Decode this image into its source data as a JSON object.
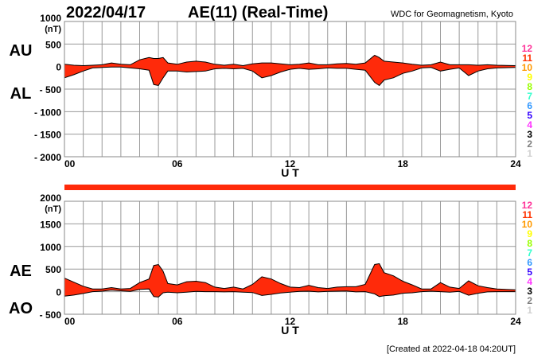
{
  "header": {
    "date": "2022/04/17",
    "title": "AE(11) (Real-Time)",
    "source": "WDC for Geomagnetism, Kyoto"
  },
  "footer": "[Created at 2022-04-18 04:20UT]",
  "station_legend": {
    "labels": [
      "12",
      "11",
      "10",
      "9",
      "8",
      "7",
      "6",
      "5",
      "4",
      "3",
      "2",
      "1"
    ],
    "colors": [
      "#ff3399",
      "#ff3300",
      "#ff9900",
      "#ffff00",
      "#99ff00",
      "#33ffcc",
      "#3399ff",
      "#3300ff",
      "#ff33ff",
      "#000000",
      "#808080",
      "#d0d0d0"
    ]
  },
  "colors": {
    "fill": "#ff2a0a",
    "outline": "#000000",
    "grid": "#999999"
  },
  "chart_data": [
    {
      "type": "area",
      "name": "AU/AL",
      "label_upper": "AU",
      "label_lower": "AL",
      "unit": "(nT)",
      "xlabel": "U T",
      "xlim": [
        0,
        24
      ],
      "xticks": [
        0,
        6,
        12,
        18,
        24
      ],
      "xtick_labels": [
        "00",
        "06",
        "12",
        "18",
        "24"
      ],
      "ylim": [
        -2000,
        1000
      ],
      "yticks": [
        1000,
        500,
        0,
        -500,
        -1000,
        -1500,
        -2000
      ],
      "ytick_labels": [
        "1000",
        "500",
        "0",
        "- 500",
        "- 1000",
        "- 1500",
        "- 2000"
      ],
      "grid": true,
      "x": [
        0,
        0.5,
        1,
        1.5,
        2,
        2.5,
        3,
        3.5,
        4,
        4.5,
        4.75,
        5,
        5.25,
        5.5,
        6,
        6.5,
        7,
        7.5,
        8,
        8.5,
        9,
        9.5,
        10,
        10.5,
        11,
        11.5,
        12,
        12.5,
        13,
        13.5,
        14,
        14.5,
        15,
        15.5,
        16,
        16.5,
        16.75,
        17,
        17.5,
        18,
        18.5,
        19,
        19.5,
        20,
        20.5,
        21,
        21.5,
        22,
        22.5,
        23,
        24
      ],
      "series": [
        {
          "name": "AU",
          "values": [
            50,
            30,
            20,
            30,
            40,
            80,
            50,
            40,
            150,
            200,
            180,
            180,
            200,
            80,
            50,
            100,
            120,
            100,
            50,
            30,
            50,
            20,
            60,
            80,
            80,
            60,
            40,
            50,
            80,
            40,
            40,
            60,
            70,
            50,
            80,
            250,
            200,
            120,
            100,
            80,
            50,
            30,
            40,
            100,
            40,
            40,
            40,
            30,
            40,
            30,
            20
          ]
        },
        {
          "name": "AL",
          "values": [
            -250,
            -180,
            -100,
            -30,
            -20,
            -10,
            -10,
            -30,
            -50,
            -80,
            -400,
            -420,
            -250,
            -100,
            -100,
            -120,
            -110,
            -100,
            -50,
            -40,
            -50,
            -40,
            -100,
            -250,
            -200,
            -120,
            -60,
            -40,
            -60,
            -50,
            -30,
            -40,
            -40,
            -60,
            -80,
            -350,
            -420,
            -300,
            -250,
            -150,
            -100,
            -30,
            -20,
            -100,
            -60,
            -30,
            -200,
            -100,
            -50,
            -30,
            -20
          ]
        }
      ]
    },
    {
      "type": "area",
      "name": "AE/AO",
      "label_upper": "AE",
      "label_lower": "AO",
      "unit": "(nT)",
      "xlabel": "U T",
      "xlim": [
        0,
        24
      ],
      "xticks": [
        0,
        6,
        12,
        18,
        24
      ],
      "xtick_labels": [
        "00",
        "06",
        "12",
        "18",
        "24"
      ],
      "ylim": [
        -500,
        2000
      ],
      "yticks": [
        2000,
        1500,
        1000,
        500,
        0,
        -500
      ],
      "ytick_labels": [
        "2000",
        "1500",
        "1000",
        "500",
        "0",
        "- 500"
      ],
      "grid": true,
      "x": [
        0,
        0.5,
        1,
        1.5,
        2,
        2.5,
        3,
        3.5,
        4,
        4.5,
        4.75,
        5,
        5.25,
        5.5,
        6,
        6.5,
        7,
        7.5,
        8,
        8.5,
        9,
        9.5,
        10,
        10.5,
        11,
        11.5,
        12,
        12.5,
        13,
        13.5,
        14,
        14.5,
        15,
        15.5,
        16,
        16.5,
        16.75,
        17,
        17.5,
        18,
        18.5,
        19,
        19.5,
        20,
        20.5,
        21,
        21.5,
        22,
        22.5,
        23,
        24
      ],
      "series": [
        {
          "name": "AE",
          "values": [
            300,
            210,
            120,
            60,
            60,
            90,
            60,
            70,
            200,
            280,
            580,
            600,
            450,
            180,
            150,
            220,
            230,
            200,
            100,
            70,
            100,
            60,
            160,
            330,
            280,
            180,
            100,
            90,
            140,
            90,
            70,
            100,
            110,
            110,
            160,
            600,
            620,
            420,
            350,
            230,
            150,
            60,
            60,
            200,
            100,
            70,
            240,
            130,
            90,
            60,
            40
          ]
        },
        {
          "name": "AO",
          "values": [
            -100,
            -75,
            -40,
            0,
            10,
            35,
            20,
            5,
            50,
            60,
            -110,
            -120,
            -25,
            -10,
            -25,
            -10,
            5,
            0,
            0,
            -5,
            0,
            -10,
            -20,
            -85,
            -60,
            -30,
            -10,
            5,
            10,
            -5,
            5,
            10,
            15,
            -5,
            0,
            -50,
            -110,
            -90,
            -75,
            -35,
            -25,
            0,
            10,
            0,
            -10,
            5,
            -80,
            -35,
            -5,
            0,
            0
          ]
        }
      ]
    }
  ]
}
